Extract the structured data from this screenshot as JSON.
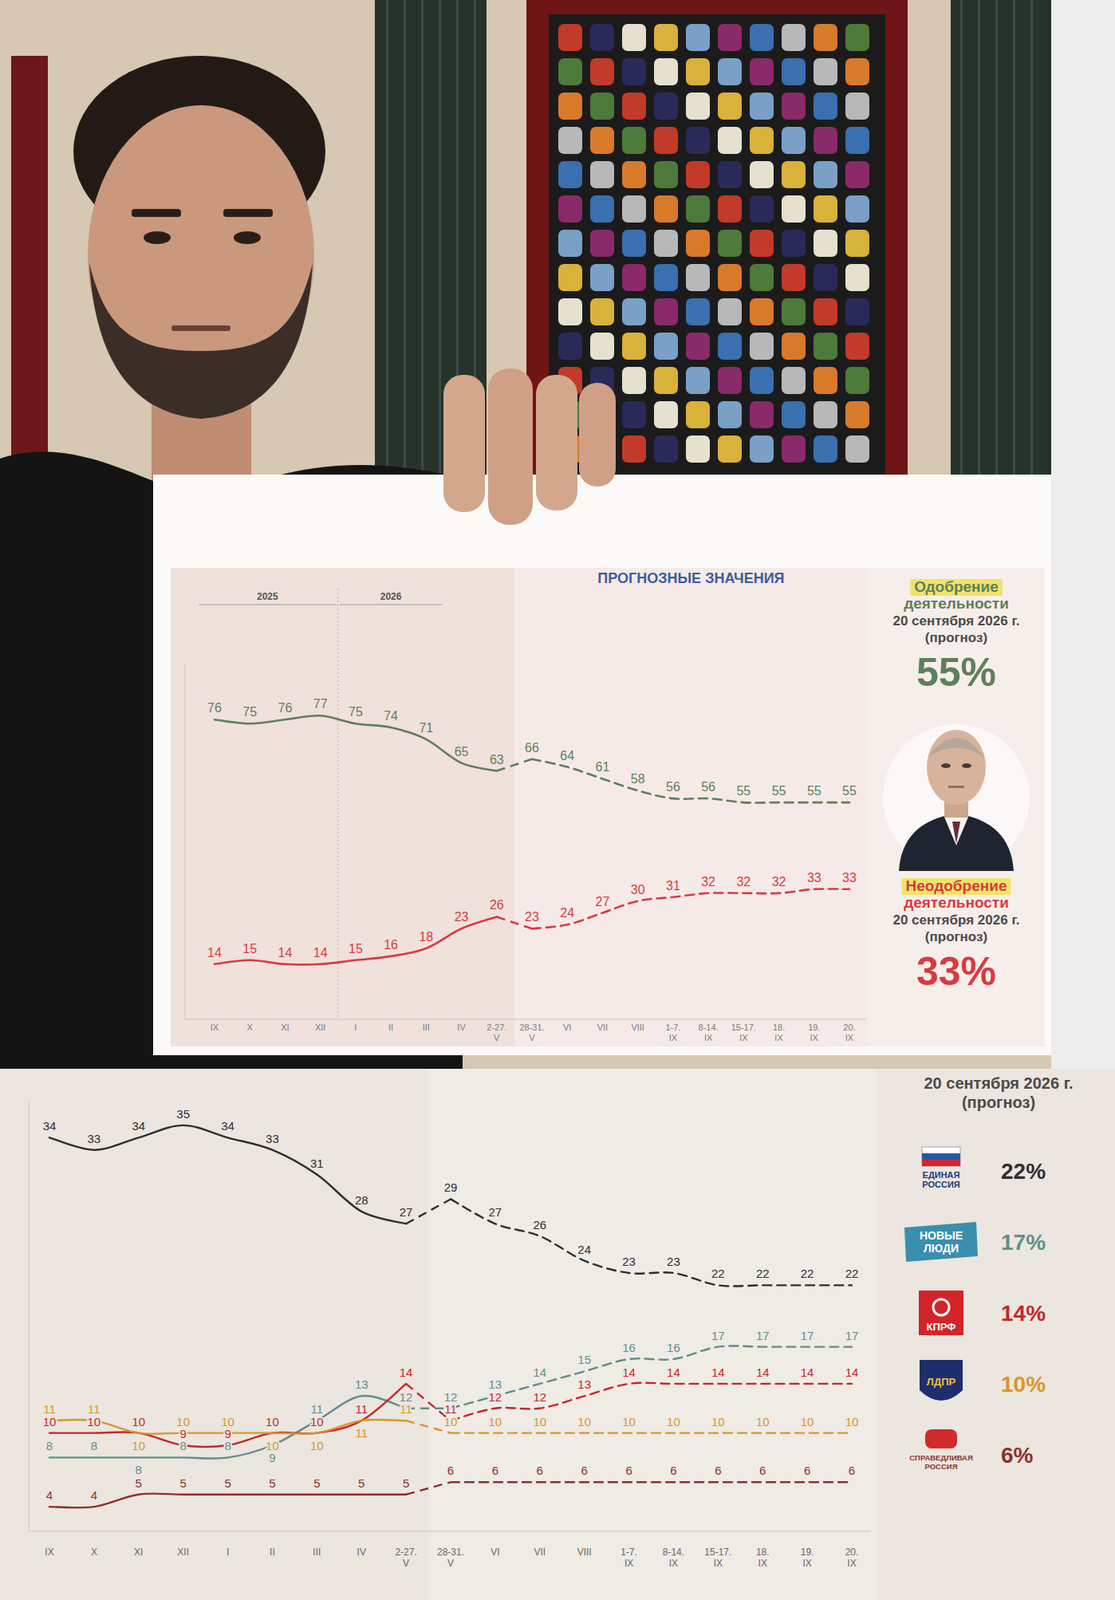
{
  "chart_data": [
    {
      "type": "line",
      "title": "ПРОГНОЗНЫЕ ЗНАЧЕНИЯ",
      "categories": [
        "IX",
        "X",
        "XI",
        "XII",
        "I",
        "II",
        "III",
        "IV",
        "2-27. V",
        "28-31. V",
        "VI",
        "VII",
        "VIII",
        "1-7. IX",
        "8-14. IX",
        "15-17. IX",
        "18. IX",
        "19. IX",
        "20. IX"
      ],
      "x_groups": [
        {
          "label": "2025",
          "from": "IX",
          "to": "XII"
        },
        {
          "label": "2026",
          "from": "I",
          "to": "III"
        }
      ],
      "ylim": [
        0,
        90
      ],
      "yticks": [],
      "grid": false,
      "legend": "right",
      "data_labels": true,
      "tick_labels": "x",
      "series": [
        {
          "name": "Одобрение деятельности",
          "color": "#5e7f5c",
          "line_style": "solid",
          "values": [
            76,
            75,
            76,
            77,
            75,
            74,
            71,
            65,
            63,
            null,
            null,
            null,
            null,
            null,
            null,
            null,
            null,
            null,
            null
          ]
        },
        {
          "name": "Одобрение деятельности",
          "color": "#5e7f5c",
          "line_style": "dashed",
          "values": [
            null,
            null,
            null,
            null,
            null,
            null,
            null,
            null,
            null,
            66,
            64,
            61,
            58,
            56,
            56,
            55,
            55,
            55,
            55
          ],
          "end_label": "55%",
          "end_note": "20 сентября 2026 г. (прогноз)"
        },
        {
          "name": "Неодобрение деятельности",
          "color": "#d93a40",
          "line_style": "solid",
          "values": [
            14,
            15,
            14,
            14,
            15,
            16,
            18,
            23,
            26,
            null,
            null,
            null,
            null,
            null,
            null,
            null,
            null,
            null,
            null
          ]
        },
        {
          "name": "Неодобрение деятельности",
          "color": "#d93a40",
          "line_style": "dashed",
          "values": [
            null,
            null,
            null,
            null,
            null,
            null,
            null,
            null,
            null,
            23,
            24,
            27,
            30,
            31,
            32,
            32,
            32,
            33,
            33
          ],
          "end_label": "33%",
          "end_note": "20 сентября 2026 г. (прогноз)"
        }
      ]
    },
    {
      "type": "line",
      "legend_title": "20 сентября 2026 г. (прогноз)",
      "categories": [
        "IX",
        "X",
        "XI",
        "XII",
        "I",
        "II",
        "III",
        "IV",
        "2-27. V",
        "28-31. V",
        "VI",
        "VII",
        "VIII",
        "1-7. IX",
        "8-14. IX",
        "15-17. IX",
        "18. IX",
        "19. IX",
        "20. IX"
      ],
      "ylim": [
        2,
        37
      ],
      "yticks": [],
      "grid": false,
      "legend": "right",
      "data_labels": true,
      "tick_labels": "x",
      "series": [
        {
          "name": "ЕДИНАЯ РОССИЯ",
          "color": "#2e2e2e",
          "line_style": "solid",
          "values": [
            34,
            33,
            34,
            35,
            34,
            33,
            31,
            28,
            27,
            null,
            null,
            null,
            null,
            null,
            null,
            null,
            null,
            null,
            null
          ]
        },
        {
          "name": "ЕДИНАЯ РОССИЯ",
          "color": "#2e2e2e",
          "line_style": "dashed",
          "values": [
            null,
            null,
            null,
            null,
            null,
            null,
            null,
            null,
            null,
            29,
            27,
            26,
            24,
            23,
            23,
            22,
            22,
            22,
            22
          ],
          "end_label": "22%"
        },
        {
          "name": "НОВЫЕ ЛЮДИ",
          "color": "#5f8f8a",
          "line_style": "solid",
          "values": [
            8,
            8,
            8,
            8,
            8,
            9,
            11,
            13,
            12,
            null,
            null,
            null,
            null,
            null,
            null,
            null,
            null,
            null,
            null
          ]
        },
        {
          "name": "НОВЫЕ ЛЮДИ",
          "color": "#5f8f8a",
          "line_style": "dashed",
          "values": [
            null,
            null,
            null,
            null,
            null,
            null,
            null,
            null,
            null,
            12,
            13,
            14,
            15,
            16,
            16,
            17,
            17,
            17,
            17
          ],
          "end_label": "17%"
        },
        {
          "name": "КПРФ",
          "color": "#c4262c",
          "line_style": "solid",
          "values": [
            10,
            10,
            10,
            9,
            9,
            10,
            10,
            11,
            14,
            null,
            null,
            null,
            null,
            null,
            null,
            null,
            null,
            null,
            null
          ]
        },
        {
          "name": "КПРФ",
          "color": "#c4262c",
          "line_style": "dashed",
          "values": [
            null,
            null,
            null,
            null,
            null,
            null,
            null,
            null,
            null,
            11,
            12,
            12,
            13,
            14,
            14,
            14,
            14,
            14,
            14
          ],
          "end_label": "14%"
        },
        {
          "name": "ЛДПР",
          "color": "#d9962a",
          "line_style": "solid",
          "values": [
            11,
            11,
            10,
            10,
            10,
            10,
            10,
            11,
            11,
            null,
            null,
            null,
            null,
            null,
            null,
            null,
            null,
            null,
            null
          ]
        },
        {
          "name": "ЛДПР",
          "color": "#d9962a",
          "line_style": "dashed",
          "values": [
            null,
            null,
            null,
            null,
            null,
            null,
            null,
            null,
            null,
            10,
            10,
            10,
            10,
            10,
            10,
            10,
            10,
            10,
            10
          ],
          "end_label": "10%"
        },
        {
          "name": "СПРАВЕДЛИВАЯ РОССИЯ",
          "color": "#8e2f2f",
          "line_style": "solid",
          "values": [
            4,
            4,
            5,
            5,
            5,
            5,
            5,
            5,
            5,
            null,
            null,
            null,
            null,
            null,
            null,
            null,
            null,
            null,
            null
          ]
        },
        {
          "name": "СПРАВЕДЛИВАЯ РОССИЯ",
          "color": "#8e2f2f",
          "line_style": "dashed",
          "values": [
            null,
            null,
            null,
            null,
            null,
            null,
            null,
            null,
            null,
            6,
            6,
            6,
            6,
            6,
            6,
            6,
            6,
            6,
            6
          ],
          "end_label": "6%"
        }
      ]
    }
  ]
}
